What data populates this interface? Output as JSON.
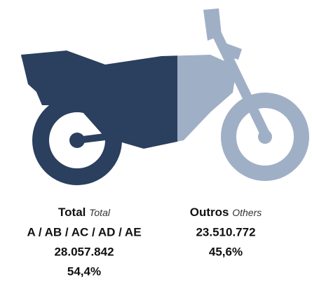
{
  "chart_data": {
    "type": "pictorial",
    "series": [
      {
        "name": "Total",
        "name_en": "Total",
        "category": "A / AB / AC / AD / AE",
        "color": "#2b3f5e",
        "values": [
          28057842,
          54.4
        ],
        "value_labels": [
          "28.057.842",
          "54,4%"
        ]
      },
      {
        "name": "Outros",
        "name_en": "Others",
        "color": "#9fb0c6",
        "values": [
          23510772,
          45.6
        ],
        "value_labels": [
          "23.510.772",
          "45,6%"
        ]
      }
    ]
  }
}
